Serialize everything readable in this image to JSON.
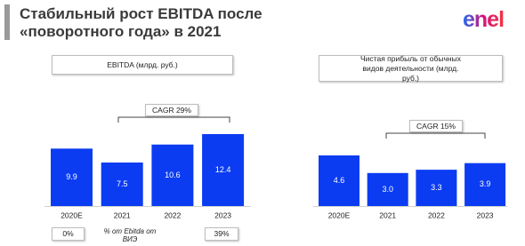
{
  "title": "Стабильный рост EBITDA после «поворотного года» в 2021",
  "logo": "enel",
  "chart_data": [
    {
      "type": "bar",
      "title": "EBITDA (млрд. руб.)",
      "annotation": "CAGR 29%",
      "categories": [
        "2020E",
        "2021",
        "2022",
        "2023"
      ],
      "values": [
        9.9,
        7.5,
        10.6,
        12.4
      ],
      "color": "#0b3cf2"
    },
    {
      "type": "bar",
      "title": "Чистая прибыль от обычных видов деятельности (млрд. руб.)",
      "annotation": "CAGR 15%",
      "categories": [
        "2020E",
        "2021",
        "2022",
        "2023"
      ],
      "values": [
        4.6,
        3.0,
        3.3,
        3.9
      ],
      "value_labels": [
        "4.6",
        "3.0",
        "3.3",
        "3.9"
      ],
      "color": "#0b3cf2"
    }
  ],
  "footer": {
    "start": "0%",
    "label": "% от Ebitda от ВИЭ",
    "end": "39%"
  }
}
